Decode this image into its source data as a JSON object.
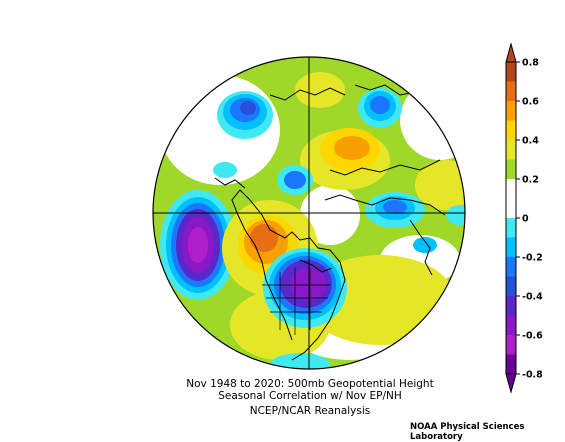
{
  "figure": {
    "title_line1": "Nov 1948 to 2020: 500mb Geopotential Height",
    "title_line2": "Seasonal Correlation w/ Nov EP/NH",
    "title_line3": "NCEP/NCAR Reanalysis",
    "credit": "NOAA Physical Sciences Laboratory"
  },
  "colorbar": {
    "ticks": [
      "0.8",
      "0.6",
      "0.4",
      "0.2",
      "0",
      "-0.2",
      "-0.4",
      "-0.6",
      "-0.8"
    ],
    "colors": [
      "#b4461e",
      "#e86d14",
      "#f7a000",
      "#ffd700",
      "#e6e628",
      "#a0d82a",
      "#ffffff",
      "#ffffff",
      "#40e8f0",
      "#00c0ff",
      "#1a78ff",
      "#2850d8",
      "#5a28c8",
      "#8a18c8",
      "#b020c8",
      "#6a0096"
    ]
  },
  "map_fields": {
    "positive": [
      {
        "name": "western-canada-high",
        "level": 0.65
      },
      {
        "name": "north-pacific-alaska",
        "level": 0.3
      },
      {
        "name": "siberia-high",
        "level": 0.45
      },
      {
        "name": "atlantic-high",
        "level": 0.35
      }
    ],
    "negative": [
      {
        "name": "central-pacific-low",
        "level": -0.75
      },
      {
        "name": "eastern-north-america-low",
        "level": -0.8
      },
      {
        "name": "arctic-lows",
        "level": -0.5
      },
      {
        "name": "europe-low",
        "level": -0.4
      }
    ]
  }
}
